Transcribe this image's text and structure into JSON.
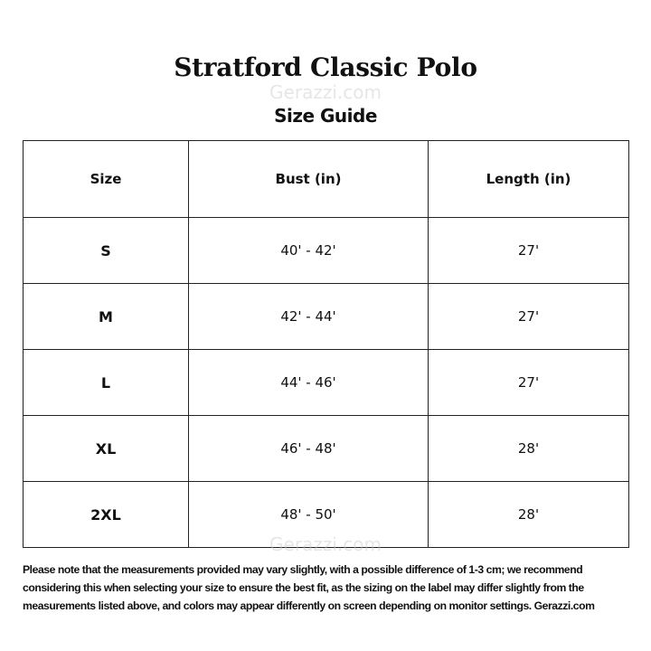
{
  "title": "Stratford Classic Polo",
  "subtitle": "Size Guide",
  "watermark": "Gerazzi.com",
  "table": {
    "headers": [
      "Size",
      "Bust (in)",
      "Length (in)"
    ],
    "rows": [
      [
        "S",
        "40' - 42'",
        "27'"
      ],
      [
        "M",
        "42' - 44'",
        "27'"
      ],
      [
        "L",
        "44' - 46'",
        "27'"
      ],
      [
        "XL",
        "46' - 48'",
        "28'"
      ],
      [
        "2XL",
        "48' - 50'",
        "28'"
      ]
    ]
  },
  "note": "Please note that the measurements provided may vary slightly, with a possible difference of 1-3 cm; we recommend considering this when selecting your size to ensure the best fit, as the sizing on the label may differ slightly from the measurements listed above, and colors may appear differently on screen depending on monitor settings. Gerazzi.com"
}
